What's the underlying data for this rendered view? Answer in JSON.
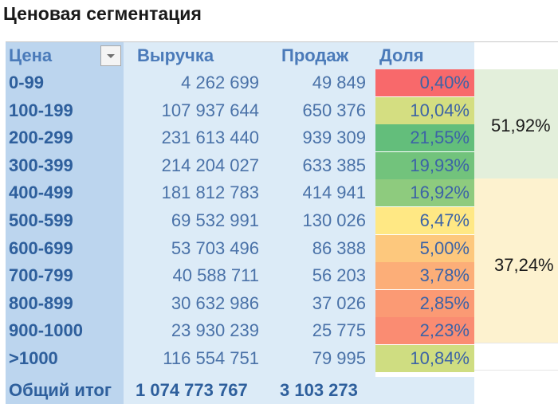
{
  "title": "Ценовая сегментация",
  "headers": {
    "cena": "Цена",
    "vyruchka": "Выручка",
    "prodazh": "Продаж",
    "dolya": "Доля"
  },
  "rows": [
    {
      "cena": "0-99",
      "vyruchka": "4 262 699",
      "prodazh": "49 849",
      "dolya": "0,40%",
      "color": "#f8696b"
    },
    {
      "cena": "100-199",
      "vyruchka": "107 937 644",
      "prodazh": "650 376",
      "dolya": "10,04%",
      "color": "#d4de81"
    },
    {
      "cena": "200-299",
      "vyruchka": "231 613 440",
      "prodazh": "939 309",
      "dolya": "21,55%",
      "color": "#63be7b"
    },
    {
      "cena": "300-399",
      "vyruchka": "214 204 027",
      "prodazh": "633 385",
      "dolya": "19,93%",
      "color": "#72c37c"
    },
    {
      "cena": "400-499",
      "vyruchka": "181 812 783",
      "prodazh": "414 941",
      "dolya": "16,92%",
      "color": "#8ecb7e"
    },
    {
      "cena": "500-599",
      "vyruchka": "69 532 991",
      "prodazh": "130 026",
      "dolya": "6,47%",
      "color": "#ffe884"
    },
    {
      "cena": "600-699",
      "vyruchka": "53 703 496",
      "prodazh": "86 388",
      "dolya": "5,00%",
      "color": "#fdc87d"
    },
    {
      "cena": "700-799",
      "vyruchka": "40 588 711",
      "prodazh": "56 203",
      "dolya": "3,78%",
      "color": "#fcae78"
    },
    {
      "cena": "800-899",
      "vyruchka": "30 632 986",
      "prodazh": "37 026",
      "dolya": "2,85%",
      "color": "#fb9a74"
    },
    {
      "cena": "900-1000",
      "vyruchka": "23 930 239",
      "prodazh": "25 775",
      "dolya": "2,23%",
      "color": "#fa8c72"
    },
    {
      "cena": ">1000",
      "vyruchka": "116 554 751",
      "prodazh": "79 995",
      "dolya": "10,84%",
      "color": "#cfdd81"
    }
  ],
  "total": {
    "label": "Общий итог",
    "vyruchka": "1 074 773 767",
    "prodazh": "3 103 273"
  },
  "groups": {
    "group1_pct": "51,92%",
    "group2_pct": "37,24%"
  }
}
